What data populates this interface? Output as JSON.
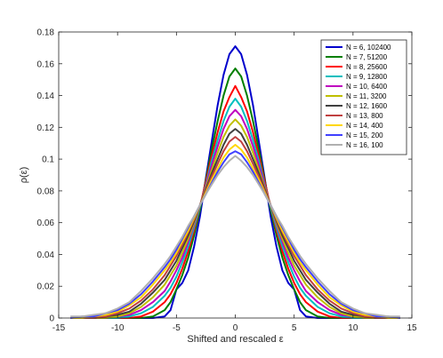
{
  "chart_data": {
    "type": "line",
    "title": "",
    "xlabel": "Shifted and rescaled ε",
    "ylabel": "ρ(ε)",
    "xlim": [
      -15,
      15
    ],
    "ylim": [
      0,
      0.18
    ],
    "xticks": [
      -15,
      -10,
      -5,
      0,
      5,
      10,
      15
    ],
    "yticks": [
      0,
      0.02,
      0.04,
      0.06,
      0.08,
      0.1,
      0.12,
      0.14,
      0.16,
      0.18
    ],
    "xtick_labels": [
      "-15",
      "-10",
      "-5",
      "0",
      "5",
      "10",
      "15"
    ],
    "ytick_labels": [
      "0",
      "0.02",
      "0.04",
      "0.06",
      "0.08",
      "0.1",
      "0.12",
      "0.14",
      "0.16",
      "0.18"
    ],
    "grid": false,
    "legend_position": "top-right",
    "x": [
      -14,
      -13,
      -12,
      -11,
      -10,
      -9,
      -8,
      -7,
      -6,
      -5.5,
      -5,
      -4.5,
      -4,
      -3.5,
      -3,
      -2.5,
      -2,
      -1.5,
      -1,
      -0.5,
      0,
      0.5,
      1,
      1.5,
      2,
      2.5,
      3,
      3.5,
      4,
      4.5,
      5,
      5.5,
      6,
      7,
      8,
      9,
      10,
      11,
      12,
      13,
      14
    ],
    "series": [
      {
        "name": "N = 6, 102400",
        "color": "#0000cc",
        "values": [
          0,
          0,
          0,
          0,
          0,
          0,
          0,
          0,
          0.001,
          0.005,
          0.018,
          0.022,
          0.03,
          0.045,
          0.064,
          0.088,
          0.111,
          0.134,
          0.153,
          0.166,
          0.171,
          0.166,
          0.153,
          0.134,
          0.111,
          0.088,
          0.064,
          0.045,
          0.03,
          0.022,
          0.018,
          0.005,
          0.001,
          0,
          0,
          0,
          0,
          0,
          0,
          0,
          0
        ]
      },
      {
        "name": "N = 7, 51200",
        "color": "#007f00",
        "values": [
          0,
          0,
          0,
          0,
          0,
          0,
          0,
          0.001,
          0.005,
          0.01,
          0.018,
          0.027,
          0.038,
          0.052,
          0.068,
          0.087,
          0.106,
          0.124,
          0.14,
          0.152,
          0.157,
          0.152,
          0.14,
          0.124,
          0.106,
          0.087,
          0.068,
          0.052,
          0.038,
          0.027,
          0.018,
          0.01,
          0.005,
          0.001,
          0,
          0,
          0,
          0,
          0,
          0,
          0
        ]
      },
      {
        "name": "N = 8, 25600",
        "color": "#ff0000",
        "values": [
          0,
          0,
          0,
          0,
          0,
          0,
          0.001,
          0.004,
          0.01,
          0.015,
          0.022,
          0.031,
          0.042,
          0.055,
          0.07,
          0.086,
          0.102,
          0.117,
          0.13,
          0.139,
          0.146,
          0.139,
          0.13,
          0.117,
          0.102,
          0.086,
          0.07,
          0.055,
          0.042,
          0.031,
          0.022,
          0.015,
          0.01,
          0.004,
          0.001,
          0,
          0,
          0,
          0,
          0,
          0
        ]
      },
      {
        "name": "N = 9, 12800",
        "color": "#00bfbf",
        "values": [
          0,
          0,
          0,
          0,
          0,
          0.001,
          0.003,
          0.007,
          0.014,
          0.019,
          0.026,
          0.035,
          0.045,
          0.057,
          0.07,
          0.084,
          0.099,
          0.112,
          0.124,
          0.133,
          0.138,
          0.133,
          0.124,
          0.112,
          0.099,
          0.084,
          0.07,
          0.057,
          0.045,
          0.035,
          0.026,
          0.019,
          0.014,
          0.007,
          0.003,
          0.001,
          0,
          0,
          0,
          0,
          0
        ]
      },
      {
        "name": "N = 10, 6400",
        "color": "#bf00bf",
        "values": [
          0,
          0,
          0,
          0,
          0.001,
          0.002,
          0.005,
          0.01,
          0.017,
          0.023,
          0.03,
          0.038,
          0.048,
          0.059,
          0.071,
          0.083,
          0.096,
          0.108,
          0.119,
          0.127,
          0.131,
          0.127,
          0.119,
          0.108,
          0.096,
          0.083,
          0.071,
          0.059,
          0.048,
          0.038,
          0.03,
          0.023,
          0.017,
          0.01,
          0.005,
          0.002,
          0.001,
          0,
          0,
          0,
          0
        ]
      },
      {
        "name": "N = 11, 3200",
        "color": "#bfbf00",
        "values": [
          0,
          0,
          0,
          0,
          0.001,
          0.003,
          0.007,
          0.013,
          0.021,
          0.027,
          0.033,
          0.041,
          0.05,
          0.06,
          0.071,
          0.082,
          0.093,
          0.104,
          0.114,
          0.121,
          0.125,
          0.121,
          0.114,
          0.104,
          0.093,
          0.082,
          0.071,
          0.06,
          0.05,
          0.041,
          0.033,
          0.027,
          0.021,
          0.013,
          0.007,
          0.003,
          0.001,
          0,
          0,
          0,
          0
        ]
      },
      {
        "name": "N = 12, 1600",
        "color": "#404040",
        "values": [
          0,
          0,
          0,
          0.001,
          0.002,
          0.004,
          0.009,
          0.016,
          0.024,
          0.03,
          0.036,
          0.044,
          0.052,
          0.061,
          0.071,
          0.081,
          0.091,
          0.1,
          0.109,
          0.116,
          0.119,
          0.116,
          0.109,
          0.1,
          0.091,
          0.081,
          0.071,
          0.061,
          0.052,
          0.044,
          0.036,
          0.03,
          0.024,
          0.016,
          0.009,
          0.004,
          0.002,
          0.001,
          0,
          0,
          0
        ]
      },
      {
        "name": "N = 13, 800",
        "color": "#c04040",
        "values": [
          0,
          0,
          0,
          0.001,
          0.003,
          0.006,
          0.011,
          0.018,
          0.027,
          0.033,
          0.039,
          0.046,
          0.054,
          0.062,
          0.071,
          0.08,
          0.089,
          0.097,
          0.105,
          0.111,
          0.114,
          0.111,
          0.105,
          0.097,
          0.089,
          0.08,
          0.071,
          0.062,
          0.054,
          0.046,
          0.039,
          0.033,
          0.027,
          0.018,
          0.011,
          0.006,
          0.003,
          0.001,
          0,
          0,
          0
        ]
      },
      {
        "name": "N = 14, 400",
        "color": "#ffd700",
        "values": [
          0,
          0,
          0.001,
          0.002,
          0.004,
          0.008,
          0.013,
          0.021,
          0.03,
          0.035,
          0.041,
          0.048,
          0.055,
          0.063,
          0.071,
          0.079,
          0.087,
          0.094,
          0.101,
          0.106,
          0.109,
          0.106,
          0.101,
          0.094,
          0.087,
          0.079,
          0.071,
          0.063,
          0.055,
          0.048,
          0.041,
          0.035,
          0.03,
          0.021,
          0.013,
          0.008,
          0.004,
          0.002,
          0.001,
          0,
          0
        ]
      },
      {
        "name": "N = 15, 200",
        "color": "#4040ff",
        "values": [
          0,
          0.001,
          0.001,
          0.003,
          0.005,
          0.009,
          0.015,
          0.023,
          0.032,
          0.037,
          0.043,
          0.05,
          0.057,
          0.064,
          0.071,
          0.078,
          0.085,
          0.092,
          0.098,
          0.103,
          0.105,
          0.103,
          0.098,
          0.092,
          0.085,
          0.078,
          0.071,
          0.064,
          0.057,
          0.05,
          0.043,
          0.037,
          0.032,
          0.023,
          0.015,
          0.009,
          0.005,
          0.003,
          0.001,
          0.001,
          0
        ]
      },
      {
        "name": "N = 16, 100",
        "color": "#b0b0b0",
        "values": [
          0.001,
          0.001,
          0.002,
          0.003,
          0.006,
          0.01,
          0.017,
          0.025,
          0.034,
          0.039,
          0.045,
          0.051,
          0.058,
          0.064,
          0.071,
          0.078,
          0.084,
          0.09,
          0.095,
          0.099,
          0.102,
          0.099,
          0.095,
          0.09,
          0.084,
          0.078,
          0.071,
          0.064,
          0.058,
          0.051,
          0.045,
          0.039,
          0.034,
          0.025,
          0.017,
          0.01,
          0.006,
          0.003,
          0.002,
          0.001,
          0.001
        ]
      }
    ]
  }
}
